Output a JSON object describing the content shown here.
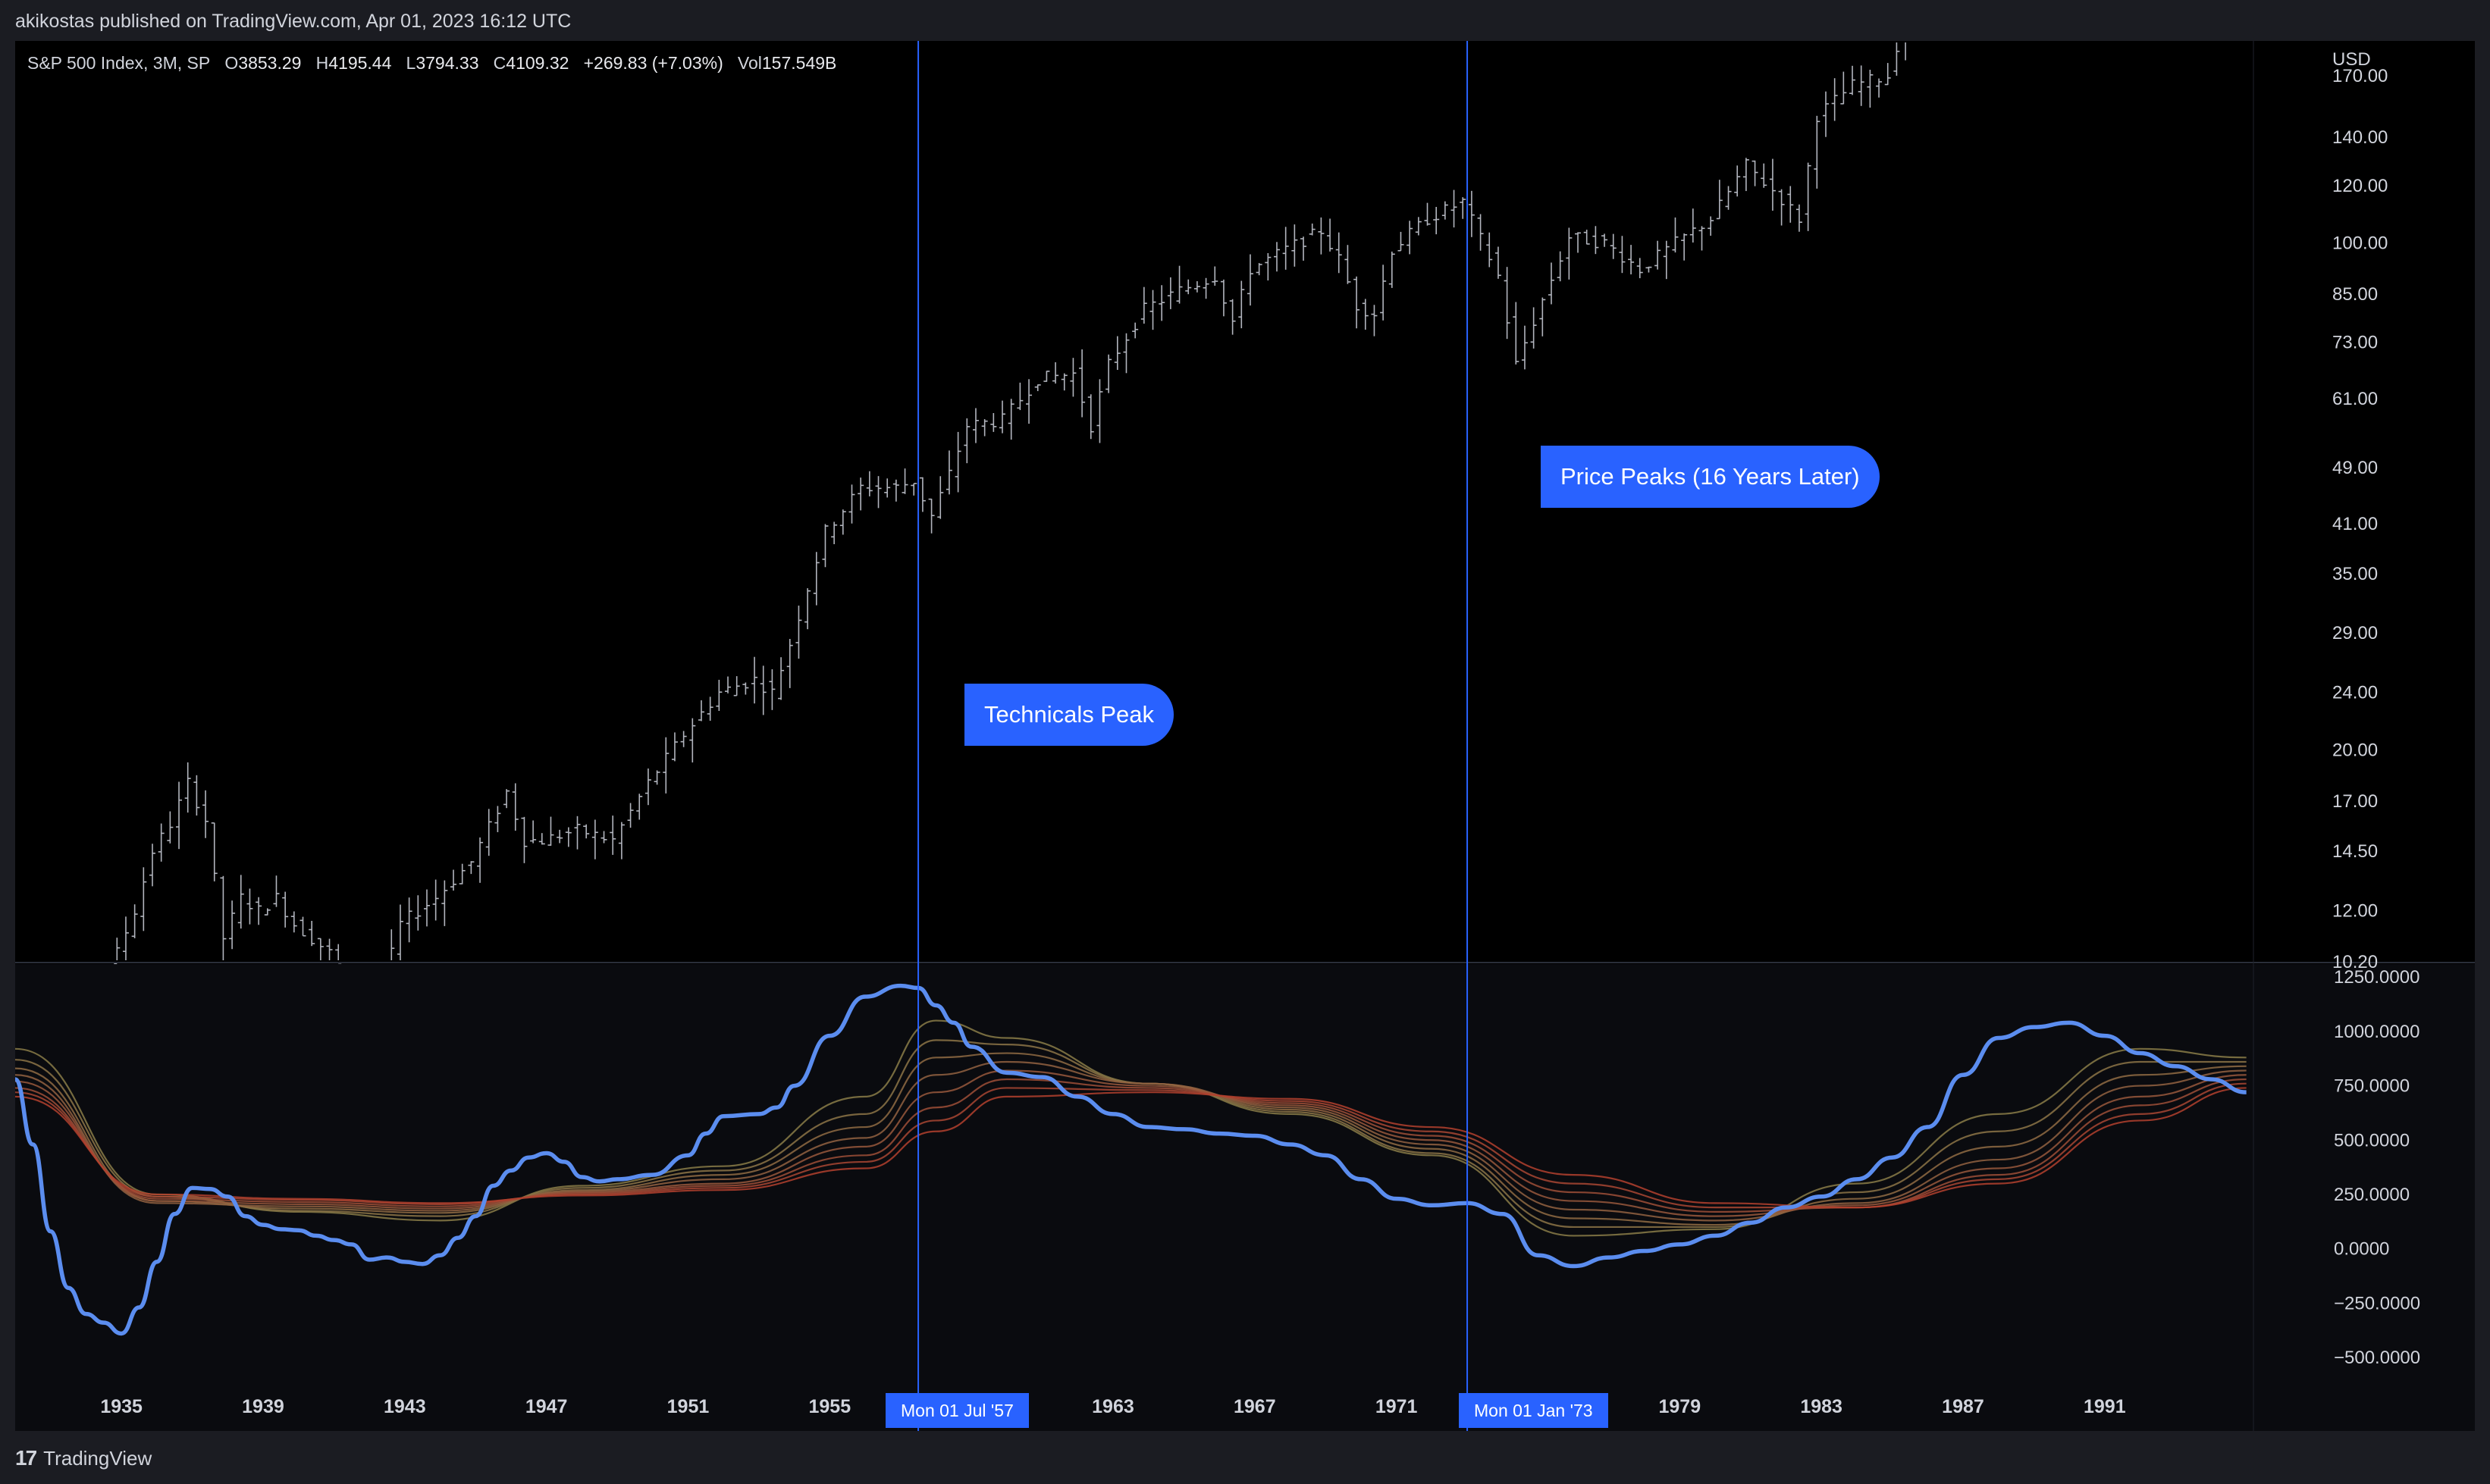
{
  "header": {
    "publish_text": "akikostas published on TradingView.com, Apr 01, 2023 16:12 UTC"
  },
  "legend": {
    "symbol": "S&P 500 Index, 3M, SP",
    "o_label": "O",
    "o_value": "3853.29",
    "h_label": "H",
    "h_value": "4195.44",
    "l_label": "L",
    "l_value": "3794.33",
    "c_label": "C",
    "c_value": "4109.32",
    "change": "+269.83 (+7.03%)",
    "vol_label": "Vol",
    "vol_value": "157.549B"
  },
  "footer": {
    "logo_mark": "17",
    "logo_text": "TradingView"
  },
  "colors": {
    "background": "#000000",
    "frame": "#1b1c22",
    "accent": "#2962ff",
    "indicator_main": "#5b8def",
    "ribbon_warm": "#b8412a",
    "ribbon_olive": "#8a7a45"
  },
  "annotations": [
    {
      "label": "Technicals Peak",
      "date_label": "Mon 01 Jul '57",
      "year": 1957.5
    },
    {
      "label": "Price Peaks (16 Years Later)",
      "date_label": "Mon 01 Jan '73",
      "year": 1973.0
    }
  ],
  "chart_data": [
    {
      "type": "bar",
      "subtype": "ohlc",
      "title": "S&P 500 Index, 3M, SP",
      "currency_label": "USD",
      "scale": "log",
      "ylim": [
        10.2,
        190
      ],
      "xlim": [
        1932.0,
        1995.2
      ],
      "y_ticks": [
        "170.00",
        "140.00",
        "120.00",
        "100.00",
        "85.00",
        "73.00",
        "61.00",
        "49.00",
        "41.00",
        "35.00",
        "29.00",
        "24.00",
        "20.00",
        "17.00",
        "14.50",
        "12.00",
        "10.20"
      ],
      "price_path": [
        [
          1932.0,
          9.0
        ],
        [
          1934.0,
          9.5
        ],
        [
          1935.0,
          10.5
        ],
        [
          1935.5,
          12.0
        ],
        [
          1936.0,
          14.5
        ],
        [
          1936.5,
          15.8
        ],
        [
          1937.0,
          18.0
        ],
        [
          1937.5,
          16.0
        ],
        [
          1938.0,
          11.0
        ],
        [
          1938.5,
          12.5
        ],
        [
          1939.0,
          12.0
        ],
        [
          1939.5,
          12.5
        ],
        [
          1940.0,
          11.5
        ],
        [
          1941.0,
          10.5
        ],
        [
          1942.0,
          9.0
        ],
        [
          1942.5,
          9.5
        ],
        [
          1943.0,
          11.5
        ],
        [
          1943.5,
          12.0
        ],
        [
          1944.0,
          12.5
        ],
        [
          1945.0,
          14.0
        ],
        [
          1946.0,
          17.5
        ],
        [
          1946.5,
          15.0
        ],
        [
          1947.0,
          15.0
        ],
        [
          1948.0,
          15.5
        ],
        [
          1949.0,
          15.0
        ],
        [
          1950.0,
          18.0
        ],
        [
          1951.0,
          21.0
        ],
        [
          1952.0,
          24.0
        ],
        [
          1953.0,
          25.0
        ],
        [
          1953.5,
          24.0
        ],
        [
          1954.0,
          28.0
        ],
        [
          1955.0,
          40.0
        ],
        [
          1956.0,
          46.0
        ],
        [
          1957.0,
          46.0
        ],
        [
          1957.5,
          47.0
        ],
        [
          1958.0,
          42.0
        ],
        [
          1958.5,
          48.0
        ],
        [
          1959.0,
          56.0
        ],
        [
          1960.0,
          57.0
        ],
        [
          1961.0,
          65.0
        ],
        [
          1962.0,
          66.0
        ],
        [
          1962.5,
          56.0
        ],
        [
          1963.0,
          68.0
        ],
        [
          1964.0,
          81.0
        ],
        [
          1965.0,
          86.0
        ],
        [
          1966.0,
          90.0
        ],
        [
          1966.5,
          78.0
        ],
        [
          1967.0,
          92.0
        ],
        [
          1968.0,
          98.0
        ],
        [
          1969.0,
          104.0
        ],
        [
          1969.5,
          95.0
        ],
        [
          1970.0,
          82.0
        ],
        [
          1970.5,
          80.0
        ],
        [
          1971.0,
          98.0
        ],
        [
          1972.0,
          108.0
        ],
        [
          1973.0,
          114.0
        ],
        [
          1974.0,
          90.0
        ],
        [
          1974.5,
          68.0
        ],
        [
          1975.0,
          78.0
        ],
        [
          1976.0,
          102.0
        ],
        [
          1977.0,
          100.0
        ],
        [
          1978.0,
          92.0
        ],
        [
          1979.0,
          100.0
        ],
        [
          1980.0,
          108.0
        ],
        [
          1981.0,
          128.0
        ],
        [
          1982.0,
          115.0
        ],
        [
          1982.5,
          108.0
        ],
        [
          1983.0,
          150.0
        ],
        [
          1984.0,
          165.0
        ],
        [
          1985.0,
          170.0
        ],
        [
          1986.0,
          250.0
        ]
      ]
    },
    {
      "type": "line",
      "title": "Oscillator with ribbon",
      "ylim": [
        -650,
        1310
      ],
      "y_ticks": [
        "1250.0000",
        "1000.0000",
        "750.0000",
        "500.0000",
        "250.0000",
        "0.0000",
        "−250.0000",
        "−500.0000"
      ],
      "x_ticks": [
        "1935",
        "1939",
        "1943",
        "1947",
        "1951",
        "1955",
        "1959",
        "1963",
        "1967",
        "1971",
        "1975",
        "1979",
        "1983",
        "1987",
        "1991"
      ],
      "x_tick_years": [
        1935,
        1939,
        1943,
        1947,
        1951,
        1955,
        1959,
        1963,
        1967,
        1971,
        1975,
        1979,
        1983,
        1987,
        1991
      ],
      "series": [
        {
          "name": "main",
          "x": [
            1932.0,
            1932.5,
            1933.0,
            1933.5,
            1934.0,
            1934.5,
            1935.0,
            1935.5,
            1936.0,
            1936.5,
            1937.0,
            1937.5,
            1938.0,
            1938.5,
            1939.0,
            1939.5,
            1940.0,
            1940.5,
            1941.0,
            1941.5,
            1942.0,
            1942.5,
            1943.0,
            1943.5,
            1944.0,
            1944.5,
            1945.0,
            1945.5,
            1946.0,
            1946.5,
            1947.0,
            1947.5,
            1948.0,
            1948.5,
            1949.0,
            1950.0,
            1951.0,
            1951.5,
            1952.0,
            1953.0,
            1953.5,
            1954.0,
            1955.0,
            1956.0,
            1957.0,
            1957.5,
            1958.0,
            1958.5,
            1959.0,
            1960.0,
            1961.0,
            1962.0,
            1963.0,
            1964.0,
            1965.0,
            1966.0,
            1967.0,
            1968.0,
            1969.0,
            1970.0,
            1971.0,
            1972.0,
            1973.0,
            1974.0,
            1975.0,
            1976.0,
            1977.0,
            1978.0,
            1979.0,
            1980.0,
            1981.0,
            1982.0,
            1983.0,
            1984.0,
            1985.0,
            1986.0,
            1987.0,
            1988.0,
            1989.0,
            1990.0,
            1991.0,
            1992.0,
            1993.0,
            1994.0,
            1995.0
          ],
          "values": [
            780,
            480,
            80,
            -180,
            -300,
            -340,
            -390,
            -270,
            -60,
            160,
            280,
            275,
            240,
            150,
            110,
            90,
            85,
            60,
            40,
            20,
            -50,
            -40,
            -60,
            -70,
            -30,
            50,
            150,
            290,
            360,
            420,
            440,
            400,
            330,
            310,
            320,
            340,
            430,
            530,
            610,
            620,
            650,
            750,
            980,
            1160,
            1210,
            1200,
            1120,
            1040,
            930,
            810,
            790,
            700,
            620,
            560,
            550,
            530,
            520,
            480,
            430,
            320,
            230,
            200,
            210,
            160,
            -30,
            -80,
            -40,
            -10,
            20,
            60,
            120,
            190,
            240,
            320,
            420,
            560,
            800,
            970,
            1020,
            1040,
            980,
            900,
            840,
            780,
            720
          ]
        },
        {
          "name": "ribbon-1",
          "x": [
            1932,
            1936,
            1940,
            1944,
            1948,
            1952,
            1956,
            1958,
            1960,
            1964,
            1968,
            1972,
            1976,
            1980,
            1984,
            1988,
            1992,
            1995
          ],
          "values": [
            920,
            250,
            170,
            130,
            290,
            380,
            700,
            1050,
            970,
            760,
            620,
            430,
            60,
            90,
            300,
            620,
            920,
            880
          ]
        },
        {
          "name": "ribbon-2",
          "x": [
            1932,
            1936,
            1940,
            1944,
            1948,
            1952,
            1956,
            1958,
            1960,
            1964,
            1968,
            1972,
            1976,
            1980,
            1984,
            1988,
            1992,
            1995
          ],
          "values": [
            870,
            240,
            175,
            150,
            280,
            360,
            620,
            960,
            940,
            760,
            630,
            440,
            100,
            100,
            260,
            540,
            860,
            860
          ]
        },
        {
          "name": "ribbon-3",
          "x": [
            1932,
            1936,
            1940,
            1944,
            1948,
            1952,
            1956,
            1958,
            1960,
            1964,
            1968,
            1972,
            1976,
            1980,
            1984,
            1988,
            1992,
            1995
          ],
          "values": [
            830,
            220,
            185,
            165,
            270,
            340,
            560,
            880,
            900,
            760,
            640,
            460,
            140,
            110,
            230,
            470,
            800,
            840
          ]
        },
        {
          "name": "ribbon-4",
          "x": [
            1932,
            1936,
            1940,
            1944,
            1948,
            1952,
            1956,
            1958,
            1960,
            1964,
            1968,
            1972,
            1976,
            1980,
            1984,
            1988,
            1992,
            1995
          ],
          "values": [
            800,
            210,
            195,
            175,
            265,
            320,
            510,
            800,
            860,
            760,
            650,
            480,
            180,
            130,
            210,
            410,
            750,
            820
          ]
        },
        {
          "name": "ribbon-5",
          "x": [
            1932,
            1936,
            1940,
            1944,
            1948,
            1952,
            1956,
            1958,
            1960,
            1964,
            1968,
            1972,
            1976,
            1980,
            1984,
            1988,
            1992,
            1995
          ],
          "values": [
            770,
            220,
            205,
            185,
            260,
            300,
            470,
            720,
            820,
            750,
            660,
            500,
            220,
            150,
            200,
            370,
            700,
            800
          ]
        },
        {
          "name": "ribbon-6",
          "x": [
            1932,
            1936,
            1940,
            1944,
            1948,
            1952,
            1956,
            1958,
            1960,
            1964,
            1968,
            1972,
            1976,
            1980,
            1984,
            1988,
            1992,
            1995
          ],
          "values": [
            740,
            230,
            215,
            195,
            255,
            290,
            430,
            650,
            780,
            740,
            670,
            520,
            260,
            170,
            190,
            340,
            660,
            780
          ]
        },
        {
          "name": "ribbon-7",
          "x": [
            1932,
            1936,
            1940,
            1944,
            1948,
            1952,
            1956,
            1958,
            1960,
            1964,
            1968,
            1972,
            1976,
            1980,
            1984,
            1988,
            1992,
            1995
          ],
          "values": [
            720,
            240,
            225,
            205,
            250,
            280,
            400,
            590,
            740,
            730,
            680,
            540,
            300,
            190,
            190,
            320,
            620,
            760
          ]
        },
        {
          "name": "ribbon-8",
          "x": [
            1932,
            1936,
            1940,
            1944,
            1948,
            1952,
            1956,
            1958,
            1960,
            1964,
            1968,
            1972,
            1976,
            1980,
            1984,
            1988,
            1992,
            1995
          ],
          "values": [
            700,
            250,
            230,
            210,
            245,
            270,
            370,
            540,
            700,
            720,
            690,
            560,
            340,
            210,
            190,
            300,
            590,
            740
          ]
        }
      ]
    }
  ]
}
